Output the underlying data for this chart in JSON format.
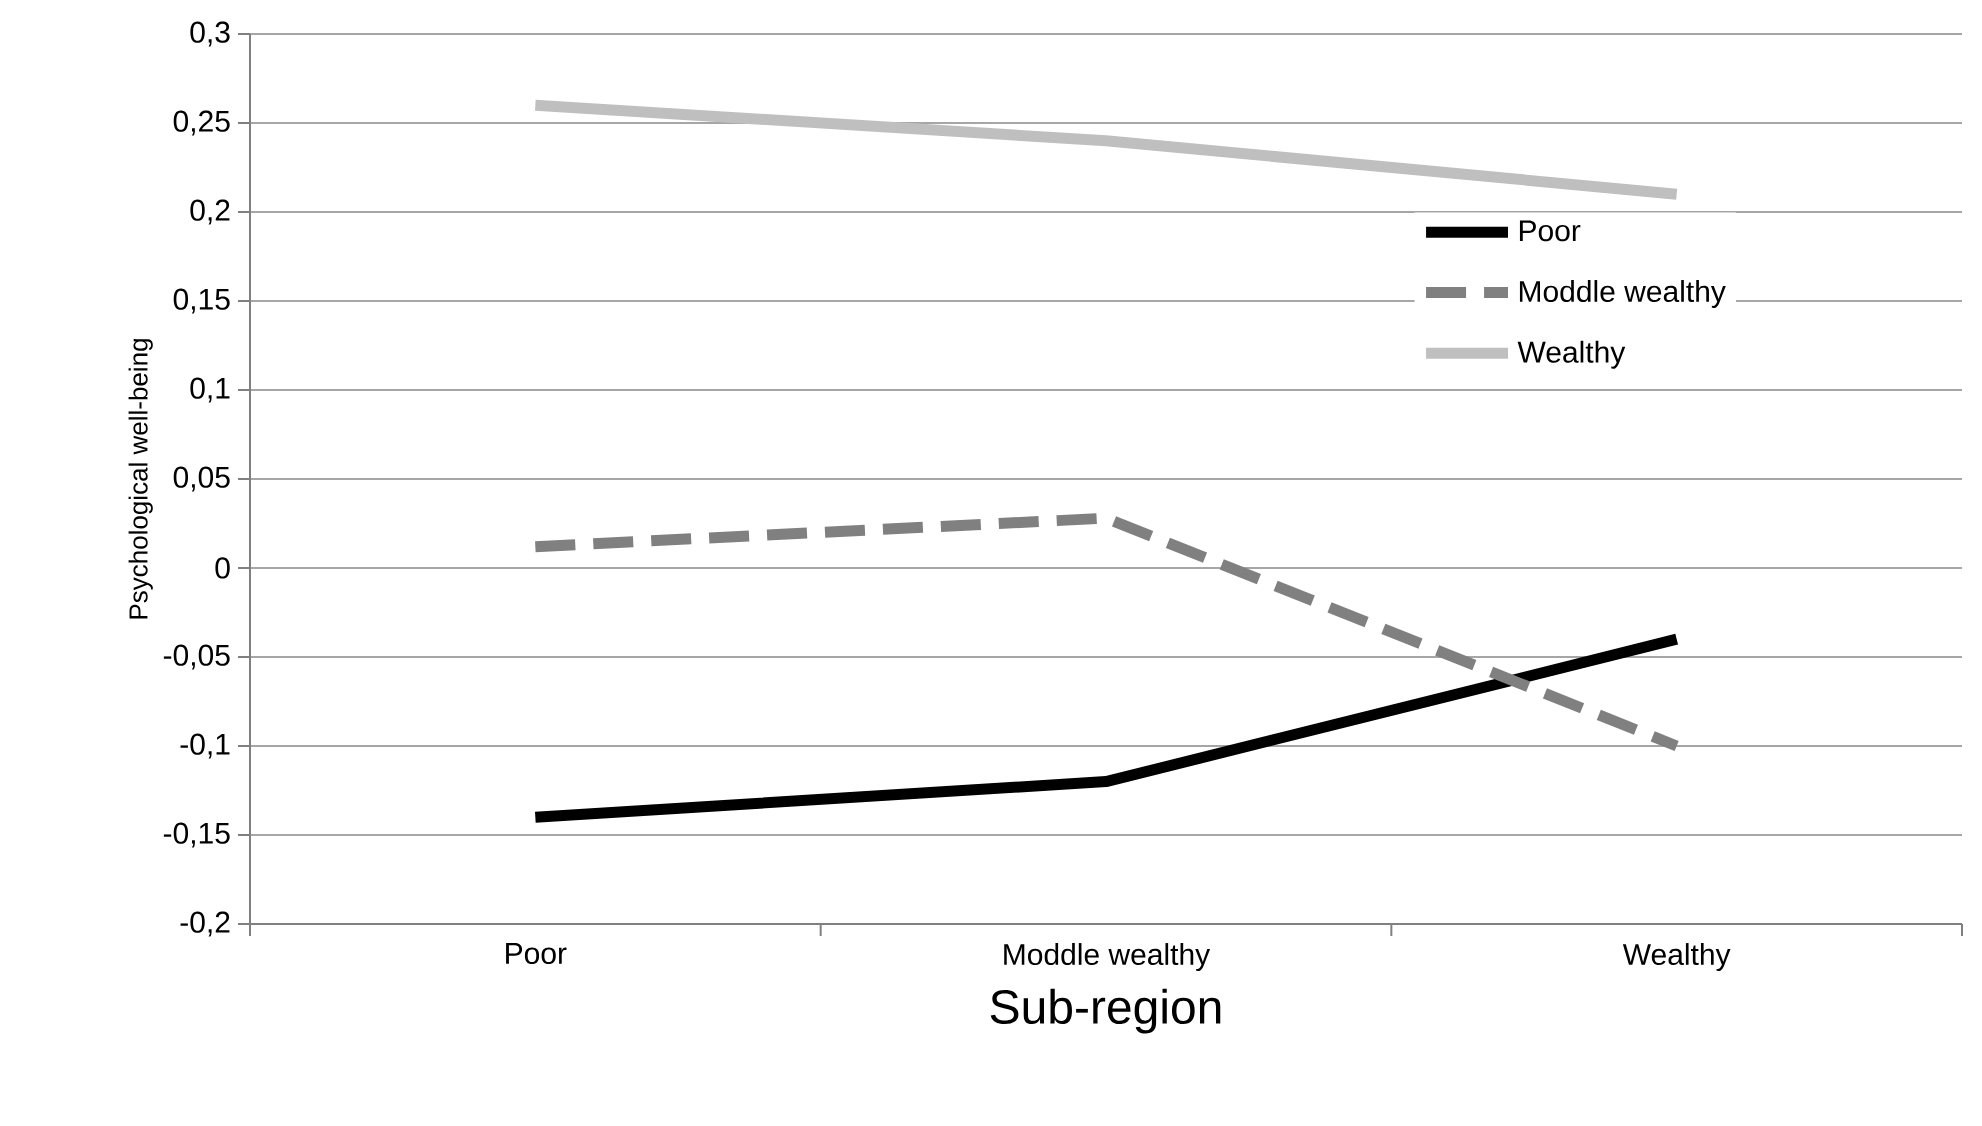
{
  "chart_data": {
    "type": "line",
    "xlabel": "Sub-region",
    "ylabel": "Psychological well-being",
    "categories": [
      "Poor",
      "Moddle wealthy",
      "Wealthy"
    ],
    "series": [
      {
        "name": "Poor",
        "color": "#000000",
        "line_style": "solid",
        "values": [
          -0.14,
          -0.12,
          -0.04
        ]
      },
      {
        "name": "Moddle wealthy",
        "color": "#808080",
        "line_style": "dashed",
        "values": [
          0.012,
          0.028,
          -0.1
        ]
      },
      {
        "name": "Wealthy",
        "color": "#bfbfbf",
        "line_style": "solid",
        "values": [
          0.26,
          0.24,
          0.21
        ]
      }
    ],
    "ylim": [
      -0.2,
      0.3
    ],
    "yticks": [
      {
        "value": -0.2,
        "label": "-0,2"
      },
      {
        "value": -0.15,
        "label": "-0,15"
      },
      {
        "value": -0.1,
        "label": "-0,1"
      },
      {
        "value": -0.05,
        "label": "-0,05"
      },
      0,
      {
        "value": 0.05,
        "label": "0,05"
      },
      {
        "value": 0.1,
        "label": "0,1"
      },
      {
        "value": 0.15,
        "label": "0,15"
      },
      {
        "value": 0.2,
        "label": "0,2"
      },
      {
        "value": 0.25,
        "label": "0,25"
      },
      {
        "value": 0.3,
        "label": "0,3"
      }
    ],
    "grid": "y",
    "legend": "right",
    "marker": "none"
  }
}
